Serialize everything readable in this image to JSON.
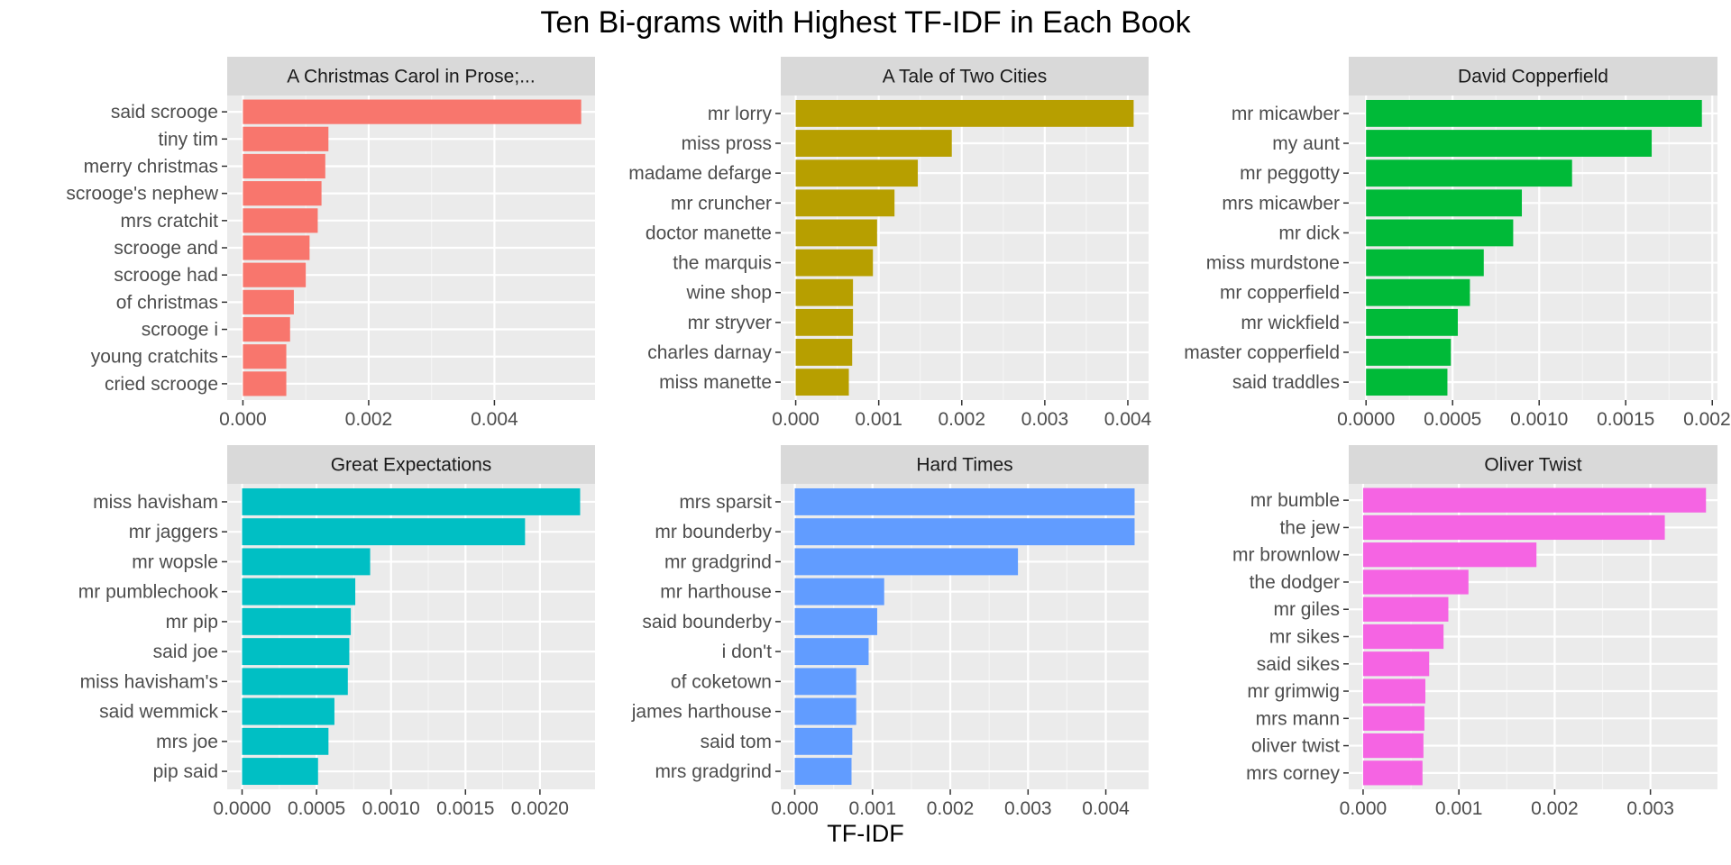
{
  "title": "Ten Bi-grams with Highest TF-IDF in Each Book",
  "x_axis_label": "TF-IDF",
  "chart_data": [
    {
      "type": "bar",
      "orientation": "horizontal",
      "panel": "A Christmas Carol in Prose;...",
      "color": "#F8766D",
      "categories": [
        "said scrooge",
        "tiny tim",
        "merry christmas",
        "scrooge's nephew",
        "mrs cratchit",
        "scrooge and",
        "scrooge had",
        "of christmas",
        "scrooge i",
        "young cratchits",
        "cried scrooge"
      ],
      "values": [
        0.00538,
        0.00136,
        0.00131,
        0.00125,
        0.00119,
        0.00106,
        0.001,
        0.00081,
        0.00075,
        0.00069,
        0.00069
      ],
      "xlim": [
        -0.00025,
        0.0056
      ],
      "xticks": [
        0,
        0.002,
        0.004
      ],
      "xtick_labels": [
        "0.000",
        "0.002",
        "0.004"
      ]
    },
    {
      "type": "bar",
      "orientation": "horizontal",
      "panel": "A Tale of Two Cities",
      "color": "#B79F00",
      "categories": [
        "mr lorry",
        "miss pross",
        "madame defarge",
        "mr cruncher",
        "doctor manette",
        "the marquis",
        "wine shop",
        "mr stryver",
        "charles darnay",
        "miss manette"
      ],
      "values": [
        0.00407,
        0.00188,
        0.00147,
        0.00119,
        0.00098,
        0.00093,
        0.00069,
        0.00069,
        0.00068,
        0.00064
      ],
      "xlim": [
        -0.00018,
        0.00425
      ],
      "xticks": [
        0,
        0.001,
        0.002,
        0.003,
        0.004
      ],
      "xtick_labels": [
        "0.000",
        "0.001",
        "0.002",
        "0.003",
        "0.004"
      ]
    },
    {
      "type": "bar",
      "orientation": "horizontal",
      "panel": "David Copperfield",
      "color": "#00BA38",
      "categories": [
        "mr micawber",
        "my aunt",
        "mr peggotty",
        "mrs micawber",
        "mr dick",
        "miss murdstone",
        "mr copperfield",
        "mr wickfield",
        "master copperfield",
        "said traddles"
      ],
      "values": [
        0.00194,
        0.00165,
        0.00119,
        0.0009,
        0.00085,
        0.00068,
        0.0006,
        0.00053,
        0.00049,
        0.00047
      ],
      "xlim": [
        -0.0001,
        0.00203
      ],
      "xticks": [
        0,
        0.0005,
        0.001,
        0.0015,
        0.002
      ],
      "xtick_labels": [
        "0.0000",
        "0.0005",
        "0.0010",
        "0.0015",
        "0.0020"
      ]
    },
    {
      "type": "bar",
      "orientation": "horizontal",
      "panel": "Great Expectations",
      "color": "#00BFC4",
      "categories": [
        "miss havisham",
        "mr jaggers",
        "mr wopsle",
        "mr pumblechook",
        "mr pip",
        "said joe",
        "miss havisham's",
        "said wemmick",
        "mrs joe",
        "pip said"
      ],
      "values": [
        0.00227,
        0.0019,
        0.00086,
        0.00076,
        0.00073,
        0.00072,
        0.00071,
        0.00062,
        0.00058,
        0.00051
      ],
      "xlim": [
        -0.0001,
        0.00237
      ],
      "xticks": [
        0,
        0.0005,
        0.001,
        0.0015,
        0.002
      ],
      "xtick_labels": [
        "0.0000",
        "0.0005",
        "0.0010",
        "0.0015",
        "0.0020"
      ]
    },
    {
      "type": "bar",
      "orientation": "horizontal",
      "panel": "Hard Times",
      "color": "#619CFF",
      "categories": [
        "mrs sparsit",
        "mr bounderby",
        "mr gradgrind",
        "mr harthouse",
        "said bounderby",
        "i don't",
        "of coketown",
        "james harthouse",
        "said tom",
        "mrs gradgrind"
      ],
      "values": [
        0.00437,
        0.00437,
        0.00287,
        0.00115,
        0.00106,
        0.00095,
        0.00079,
        0.00079,
        0.00074,
        0.00073
      ],
      "xlim": [
        -0.00018,
        0.00455
      ],
      "xticks": [
        0,
        0.001,
        0.002,
        0.003,
        0.004
      ],
      "xtick_labels": [
        "0.000",
        "0.001",
        "0.002",
        "0.003",
        "0.004"
      ]
    },
    {
      "type": "bar",
      "orientation": "horizontal",
      "panel": "Oliver Twist",
      "color": "#F564E3",
      "categories": [
        "mr bumble",
        "the jew",
        "mr brownlow",
        "the dodger",
        "mr giles",
        "mr sikes",
        "said sikes",
        "mr grimwig",
        "mrs mann",
        "oliver twist",
        "mrs corney"
      ],
      "values": [
        0.00358,
        0.00315,
        0.00181,
        0.0011,
        0.00089,
        0.00084,
        0.00069,
        0.00065,
        0.00064,
        0.00063,
        0.00062
      ],
      "xlim": [
        -0.00015,
        0.0037
      ],
      "xticks": [
        0,
        0.001,
        0.002,
        0.003
      ],
      "xtick_labels": [
        "0.000",
        "0.001",
        "0.002",
        "0.003"
      ]
    }
  ]
}
